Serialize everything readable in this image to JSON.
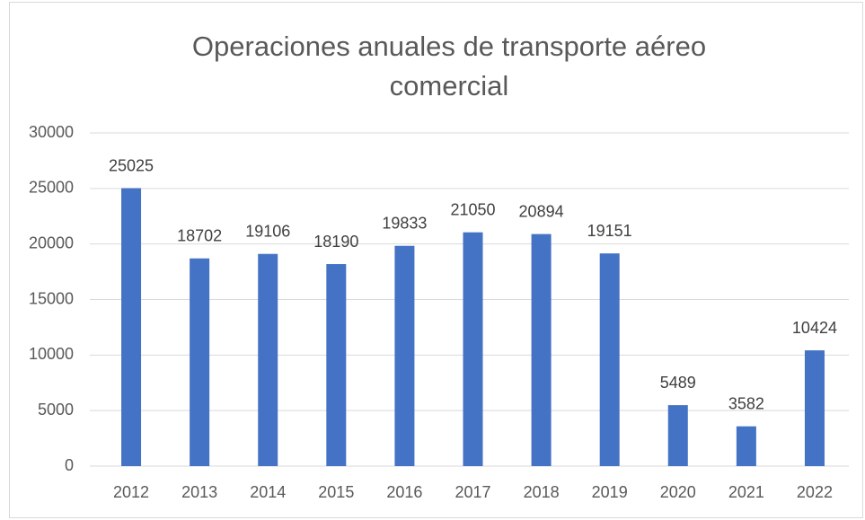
{
  "chart_data": {
    "type": "bar",
    "title": "Operaciones anuales de transporte aéreo comercial",
    "categories": [
      "2012",
      "2013",
      "2014",
      "2015",
      "2016",
      "2017",
      "2018",
      "2019",
      "2020",
      "2021",
      "2022"
    ],
    "values": [
      25025,
      18702,
      19106,
      18190,
      19833,
      21050,
      20894,
      19151,
      5489,
      3582,
      10424
    ],
    "color": "#4472c4",
    "ylim": [
      0,
      30000
    ],
    "yticks": [
      0,
      5000,
      10000,
      15000,
      20000,
      25000,
      30000
    ],
    "grid": true
  }
}
